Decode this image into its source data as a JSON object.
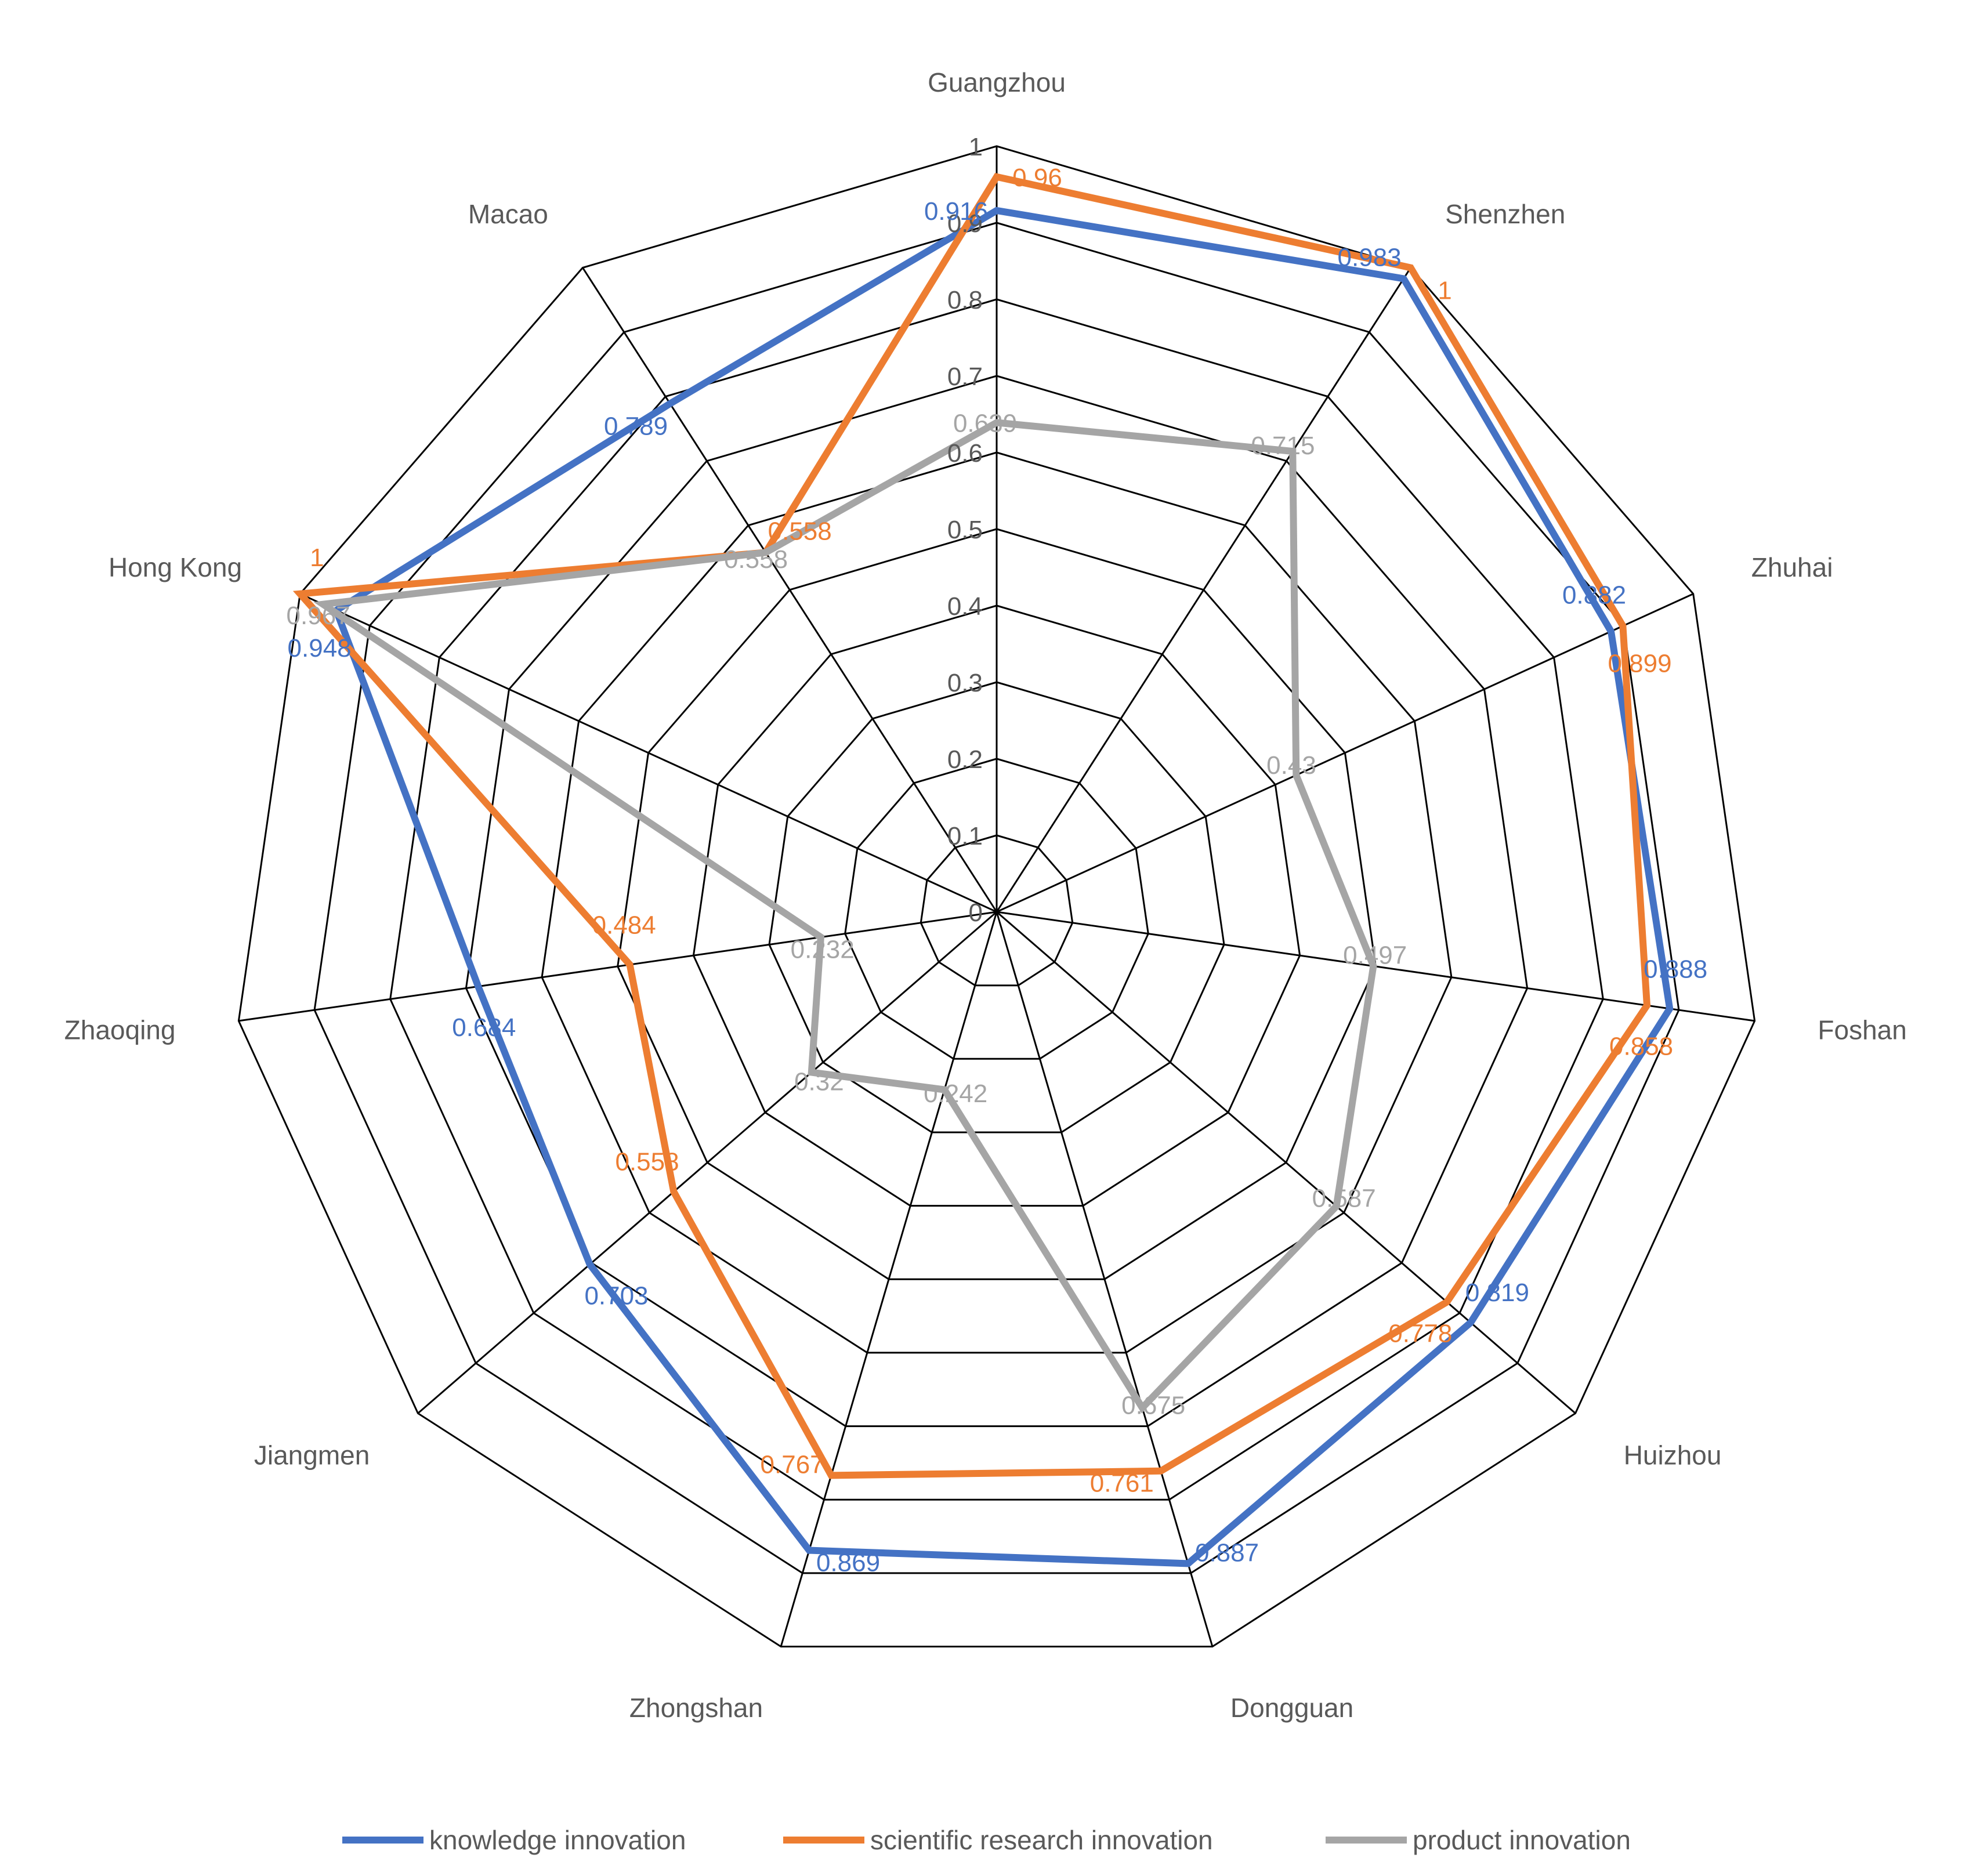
{
  "chart_data": {
    "type": "radar",
    "categories": [
      "Guangzhou",
      "Shenzhen",
      "Zhuhai",
      "Foshan",
      "Huizhou",
      "Dongguan",
      "Zhongshan",
      "Jiangmen",
      "Zhaoqing",
      "Hong Kong",
      "Macao"
    ],
    "ticks": [
      "0",
      "0.1",
      "0.2",
      "0.3",
      "0.4",
      "0.5",
      "0.6",
      "0.7",
      "0.8",
      "0.9",
      "1"
    ],
    "range": [
      0,
      1
    ],
    "grid": true,
    "legend_position": "bottom",
    "series": [
      {
        "name": "knowledge innovation",
        "color": "#4472C4",
        "values": [
          0.916,
          0.983,
          0.882,
          0.888,
          0.819,
          0.887,
          0.869,
          0.703,
          0.684,
          0.948,
          0.789
        ],
        "labels": [
          "0.916",
          "0.983",
          "0.882",
          "0.888",
          "0.819",
          "0.887",
          "0.869",
          "0.703",
          "0.684",
          "0.948",
          "0.789"
        ]
      },
      {
        "name": "scientific research innovation",
        "color": "#ED7D31",
        "values": [
          0.96,
          1,
          0.899,
          0.858,
          0.778,
          0.761,
          0.767,
          0.558,
          0.484,
          1,
          0.558
        ],
        "labels": [
          "0.96",
          "1",
          "0.899",
          "0.858",
          "0.778",
          "0.761",
          "0.767",
          "0.558",
          "0.484",
          "1",
          "0.558"
        ]
      },
      {
        "name": "product innovation",
        "color": "#A5A5A5",
        "values": [
          0.639,
          0.715,
          0.43,
          0.497,
          0.587,
          0.675,
          0.242,
          0.32,
          0.232,
          0.967,
          0.558
        ],
        "labels": [
          "0.639",
          "0.715",
          "0.43",
          "0.497",
          "0.587",
          "0.675",
          "0.242",
          "0.32",
          "0.232",
          "0.967",
          "0.558"
        ]
      }
    ]
  }
}
